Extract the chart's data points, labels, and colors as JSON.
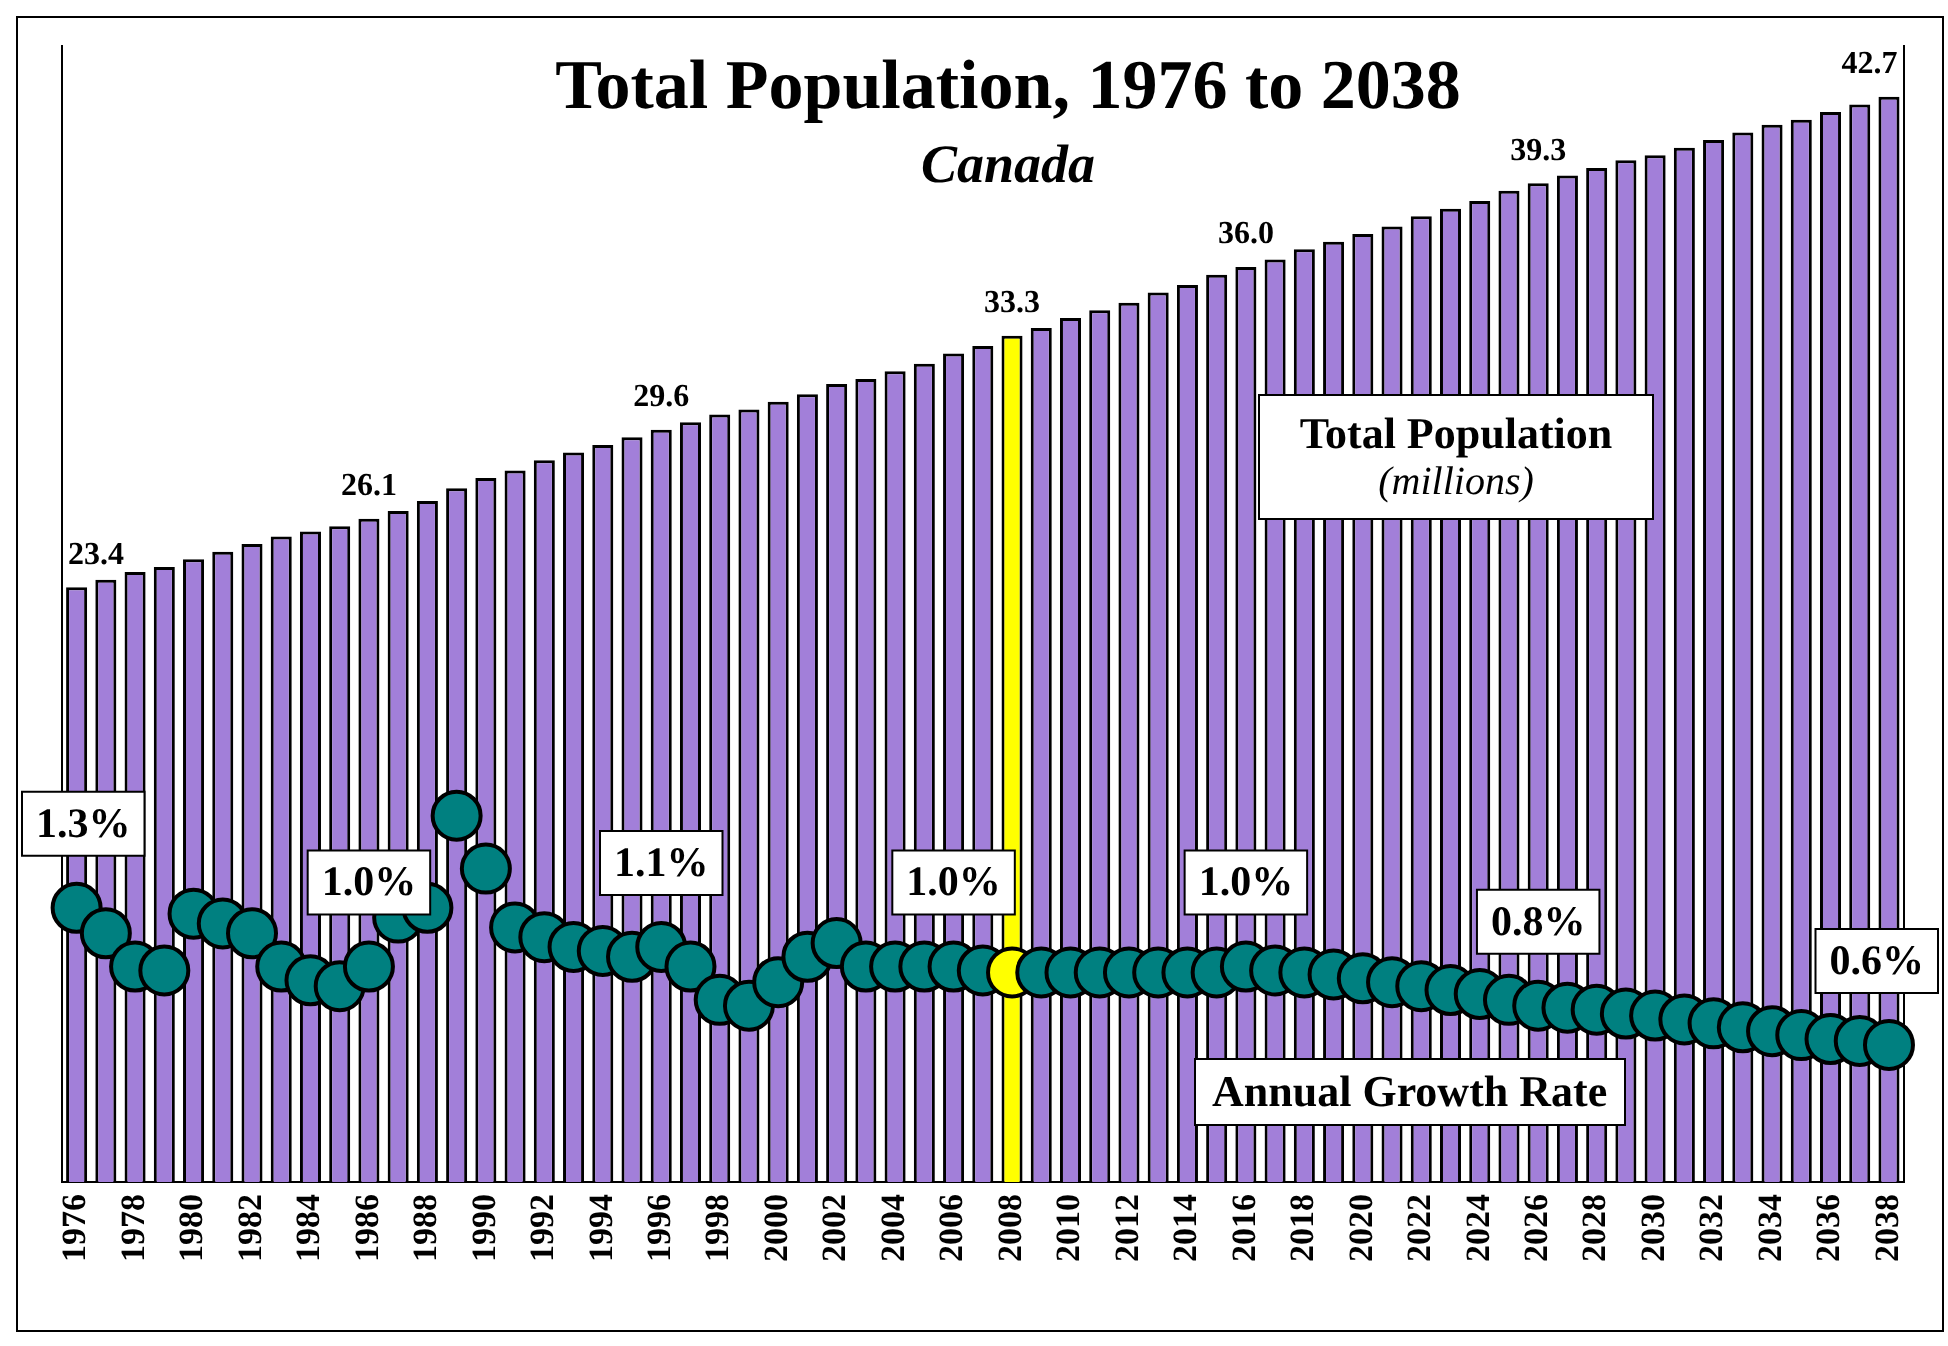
{
  "chart_data": {
    "type": "bar",
    "title": "Total Population, 1976 to 2038",
    "subtitle": "Canada",
    "annotations": [
      "(millions)"
    ],
    "categories": [
      "1976",
      null,
      "1978",
      null,
      "1980",
      null,
      "1982",
      null,
      "1984",
      null,
      "1986",
      null,
      "1988",
      null,
      "1990",
      null,
      "1992",
      null,
      "1994",
      null,
      "1996",
      null,
      "1998",
      null,
      "2000",
      null,
      "2002",
      null,
      "2004",
      null,
      "2006",
      null,
      "2008",
      null,
      "2010",
      null,
      "2012",
      null,
      "2014",
      null,
      "2016",
      null,
      "2018",
      null,
      "2020",
      null,
      "2022",
      null,
      "2024",
      null,
      "2026",
      null,
      "2028",
      null,
      "2030",
      null,
      "2032",
      null,
      "2034",
      null,
      "2036",
      null,
      "2038"
    ],
    "ylim": [
      0,
      44.7
    ],
    "y2lim": [
      -0.1,
      5.7
    ],
    "grid": false,
    "legend": "right",
    "marker": "circle",
    "series": [
      {
        "name": "Total Population",
        "colors": [
          "#a27fd9",
          "#a27fd9",
          "#a27fd9",
          "#a27fd9",
          "#a27fd9",
          "#a27fd9",
          "#a27fd9",
          "#a27fd9",
          "#a27fd9",
          "#a27fd9",
          "#a27fd9",
          "#a27fd9",
          "#a27fd9",
          "#a27fd9",
          "#a27fd9",
          "#a27fd9",
          "#a27fd9",
          "#a27fd9",
          "#a27fd9",
          "#a27fd9",
          "#a27fd9",
          "#a27fd9",
          "#a27fd9",
          "#a27fd9",
          "#a27fd9",
          "#a27fd9",
          "#a27fd9",
          "#a27fd9",
          "#a27fd9",
          "#a27fd9",
          "#a27fd9",
          "#a27fd9",
          "#ffff00",
          "#a27fd9",
          "#a27fd9",
          "#a27fd9",
          "#a27fd9",
          "#a27fd9",
          "#a27fd9",
          "#a27fd9",
          "#a27fd9",
          "#a27fd9",
          "#a27fd9",
          "#a27fd9",
          "#a27fd9",
          "#a27fd9",
          "#a27fd9",
          "#a27fd9",
          "#a27fd9",
          "#a27fd9",
          "#a27fd9",
          "#a27fd9",
          "#a27fd9",
          "#a27fd9",
          "#a27fd9",
          "#a27fd9",
          "#a27fd9",
          "#a27fd9",
          "#a27fd9",
          "#a27fd9",
          "#a27fd9",
          "#a27fd9",
          "#a27fd9"
        ],
        "values": [
          23.4,
          23.7,
          24.0,
          24.2,
          24.5,
          24.8,
          25.1,
          25.4,
          25.6,
          25.8,
          26.1,
          26.4,
          26.8,
          27.3,
          27.7,
          28.0,
          28.4,
          28.7,
          29.0,
          29.3,
          29.6,
          29.9,
          30.2,
          30.4,
          30.7,
          31.0,
          31.4,
          31.6,
          31.9,
          32.2,
          32.6,
          32.9,
          33.3,
          33.6,
          34.0,
          34.3,
          34.6,
          35.0,
          35.3,
          35.7,
          36.0,
          36.3,
          36.7,
          37.0,
          37.3,
          37.6,
          38.0,
          38.3,
          38.6,
          39.0,
          39.3,
          39.6,
          39.9,
          40.2,
          40.4,
          40.7,
          41.0,
          41.3,
          41.6,
          41.8,
          42.1,
          42.4,
          42.7
        ],
        "value_labels": [
          "23.4",
          null,
          null,
          null,
          null,
          null,
          null,
          null,
          null,
          null,
          "26.1",
          null,
          null,
          null,
          null,
          null,
          null,
          null,
          null,
          null,
          "29.6",
          null,
          null,
          null,
          null,
          null,
          null,
          null,
          null,
          null,
          null,
          null,
          "33.3",
          null,
          null,
          null,
          null,
          null,
          null,
          null,
          "36.0",
          null,
          null,
          null,
          null,
          null,
          null,
          null,
          null,
          null,
          "39.3",
          null,
          null,
          null,
          null,
          null,
          null,
          null,
          null,
          null,
          null,
          null,
          "42.7"
        ]
      },
      {
        "name": "Annual Growth Rate",
        "type": "scatter",
        "axis": "y2",
        "colors": [
          "#008080",
          "#008080",
          "#008080",
          "#008080",
          "#008080",
          "#008080",
          "#008080",
          "#008080",
          "#008080",
          "#008080",
          "#008080",
          "#008080",
          "#008080",
          "#008080",
          "#008080",
          "#008080",
          "#008080",
          "#008080",
          "#008080",
          "#008080",
          "#008080",
          "#008080",
          "#008080",
          "#008080",
          "#008080",
          "#008080",
          "#008080",
          "#008080",
          "#008080",
          "#008080",
          "#008080",
          "#008080",
          "#ffff00",
          "#008080",
          "#008080",
          "#008080",
          "#008080",
          "#008080",
          "#008080",
          "#008080",
          "#008080",
          "#008080",
          "#008080",
          "#008080",
          "#008080",
          "#008080",
          "#008080",
          "#008080",
          "#008080",
          "#008080",
          "#008080",
          "#008080",
          "#008080",
          "#008080",
          "#008080",
          "#008080",
          "#008080",
          "#008080",
          "#008080",
          "#008080",
          "#008080",
          "#008080",
          "#008080"
        ],
        "values": [
          1.3,
          1.17,
          1.0,
          0.98,
          1.27,
          1.22,
          1.17,
          1.0,
          0.93,
          0.9,
          1.0,
          1.25,
          1.3,
          1.77,
          1.5,
          1.2,
          1.15,
          1.1,
          1.08,
          1.05,
          1.1,
          1.0,
          0.83,
          0.8,
          0.92,
          1.05,
          1.12,
          1.0,
          1.0,
          1.0,
          1.0,
          0.98,
          0.97,
          0.97,
          0.97,
          0.97,
          0.97,
          0.97,
          0.97,
          0.97,
          1.0,
          0.98,
          0.97,
          0.96,
          0.94,
          0.92,
          0.9,
          0.88,
          0.86,
          0.83,
          0.8,
          0.79,
          0.78,
          0.76,
          0.75,
          0.73,
          0.71,
          0.69,
          0.67,
          0.65,
          0.63,
          0.62,
          0.6
        ],
        "value_labels": [
          "1.3%",
          null,
          null,
          null,
          null,
          null,
          null,
          null,
          null,
          null,
          "1.0%",
          null,
          null,
          null,
          null,
          null,
          null,
          null,
          null,
          null,
          "1.1%",
          null,
          null,
          null,
          null,
          null,
          null,
          null,
          null,
          null,
          "1.0%",
          null,
          null,
          null,
          null,
          null,
          null,
          null,
          null,
          null,
          "1.0%",
          null,
          null,
          null,
          null,
          null,
          null,
          null,
          null,
          null,
          "0.8%",
          null,
          null,
          null,
          null,
          null,
          null,
          null,
          null,
          null,
          null,
          null,
          "0.6%"
        ]
      }
    ]
  }
}
